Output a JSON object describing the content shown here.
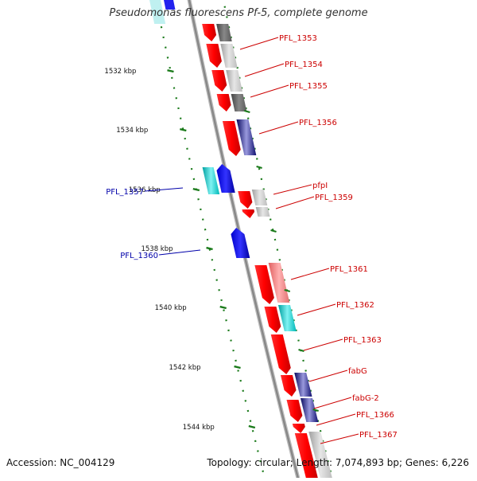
{
  "title": "Pseudomonas fluorescens Pf-5, complete genome",
  "footer": {
    "accession": "Accession: NC_004129",
    "summary": "Topology: circular; Length: 7,074,893 bp; Genes: 6,226"
  },
  "colors": {
    "forward_cds": "#ff0000",
    "reverse_cds": "#0000ff",
    "forward_label": "#cc0000",
    "reverse_label": "#0000aa",
    "backbone": "#888888",
    "tick": "#1a7a1a"
  },
  "ticks": [
    {
      "kbp": 1532,
      "label": "1532 kbp"
    },
    {
      "kbp": 1534,
      "label": "1534 kbp"
    },
    {
      "kbp": 1536,
      "label": "1536 kbp"
    },
    {
      "kbp": 1538,
      "label": "1538 kbp"
    },
    {
      "kbp": 1540,
      "label": "1540 kbp"
    },
    {
      "kbp": 1542,
      "label": "1542 kbp"
    },
    {
      "kbp": 1544,
      "label": "1544 kbp"
    }
  ],
  "genes": [
    {
      "name": "PFL_1353",
      "strand": "+"
    },
    {
      "name": "PFL_1354",
      "strand": "+"
    },
    {
      "name": "PFL_1355",
      "strand": "+"
    },
    {
      "name": "PFL_1356",
      "strand": "+"
    },
    {
      "name": "PFL_1357",
      "strand": "-"
    },
    {
      "name": "pfpI",
      "strand": "+"
    },
    {
      "name": "PFL_1359",
      "strand": "+"
    },
    {
      "name": "PFL_1360",
      "strand": "-"
    },
    {
      "name": "PFL_1361",
      "strand": "+"
    },
    {
      "name": "PFL_1362",
      "strand": "+"
    },
    {
      "name": "PFL_1363",
      "strand": "+"
    },
    {
      "name": "fabG",
      "strand": "+"
    },
    {
      "name": "fabG-2",
      "strand": "+"
    },
    {
      "name": "PFL_1366",
      "strand": "+"
    },
    {
      "name": "PFL_1367",
      "strand": "+"
    }
  ]
}
